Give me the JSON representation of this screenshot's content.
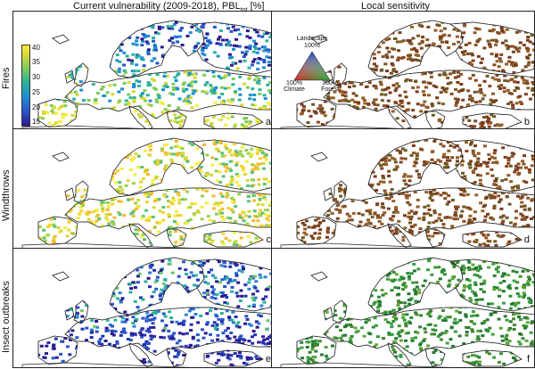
{
  "columns": {
    "left_title_main": "Current vulnerability (2009-2018), PBL",
    "left_title_sub": "tot",
    "left_title_unit": "[%]",
    "right_title": "Local sensitivity"
  },
  "rows": [
    "Fires",
    "Windthrows",
    "Insect outbreaks"
  ],
  "panels": [
    {
      "letter": "a",
      "palette": "fires-vulnerability"
    },
    {
      "letter": "b",
      "palette": "sensitivity-brown"
    },
    {
      "letter": "c",
      "palette": "windthrow-vulnerability"
    },
    {
      "letter": "d",
      "palette": "sensitivity-brown"
    },
    {
      "letter": "e",
      "palette": "insect-vulnerability"
    },
    {
      "letter": "f",
      "palette": "sensitivity-green"
    }
  ],
  "colorbar": {
    "ticks": [
      "40",
      "35",
      "30",
      "25",
      "20",
      "15"
    ],
    "colors": [
      "#2b1b8f",
      "#2a55c9",
      "#1f8fd0",
      "#2bb39a",
      "#7fcb5a",
      "#d6d83a",
      "#f6ee3a"
    ]
  },
  "ternary_legend": {
    "top": "Landscape",
    "top_pct": "100%",
    "left_pct": "100%",
    "left": "Climate",
    "right_pct": "100%",
    "right": "Forest",
    "colors": {
      "top": "#2244cc",
      "left": "#cc2222",
      "right": "#22aa33"
    }
  }
}
